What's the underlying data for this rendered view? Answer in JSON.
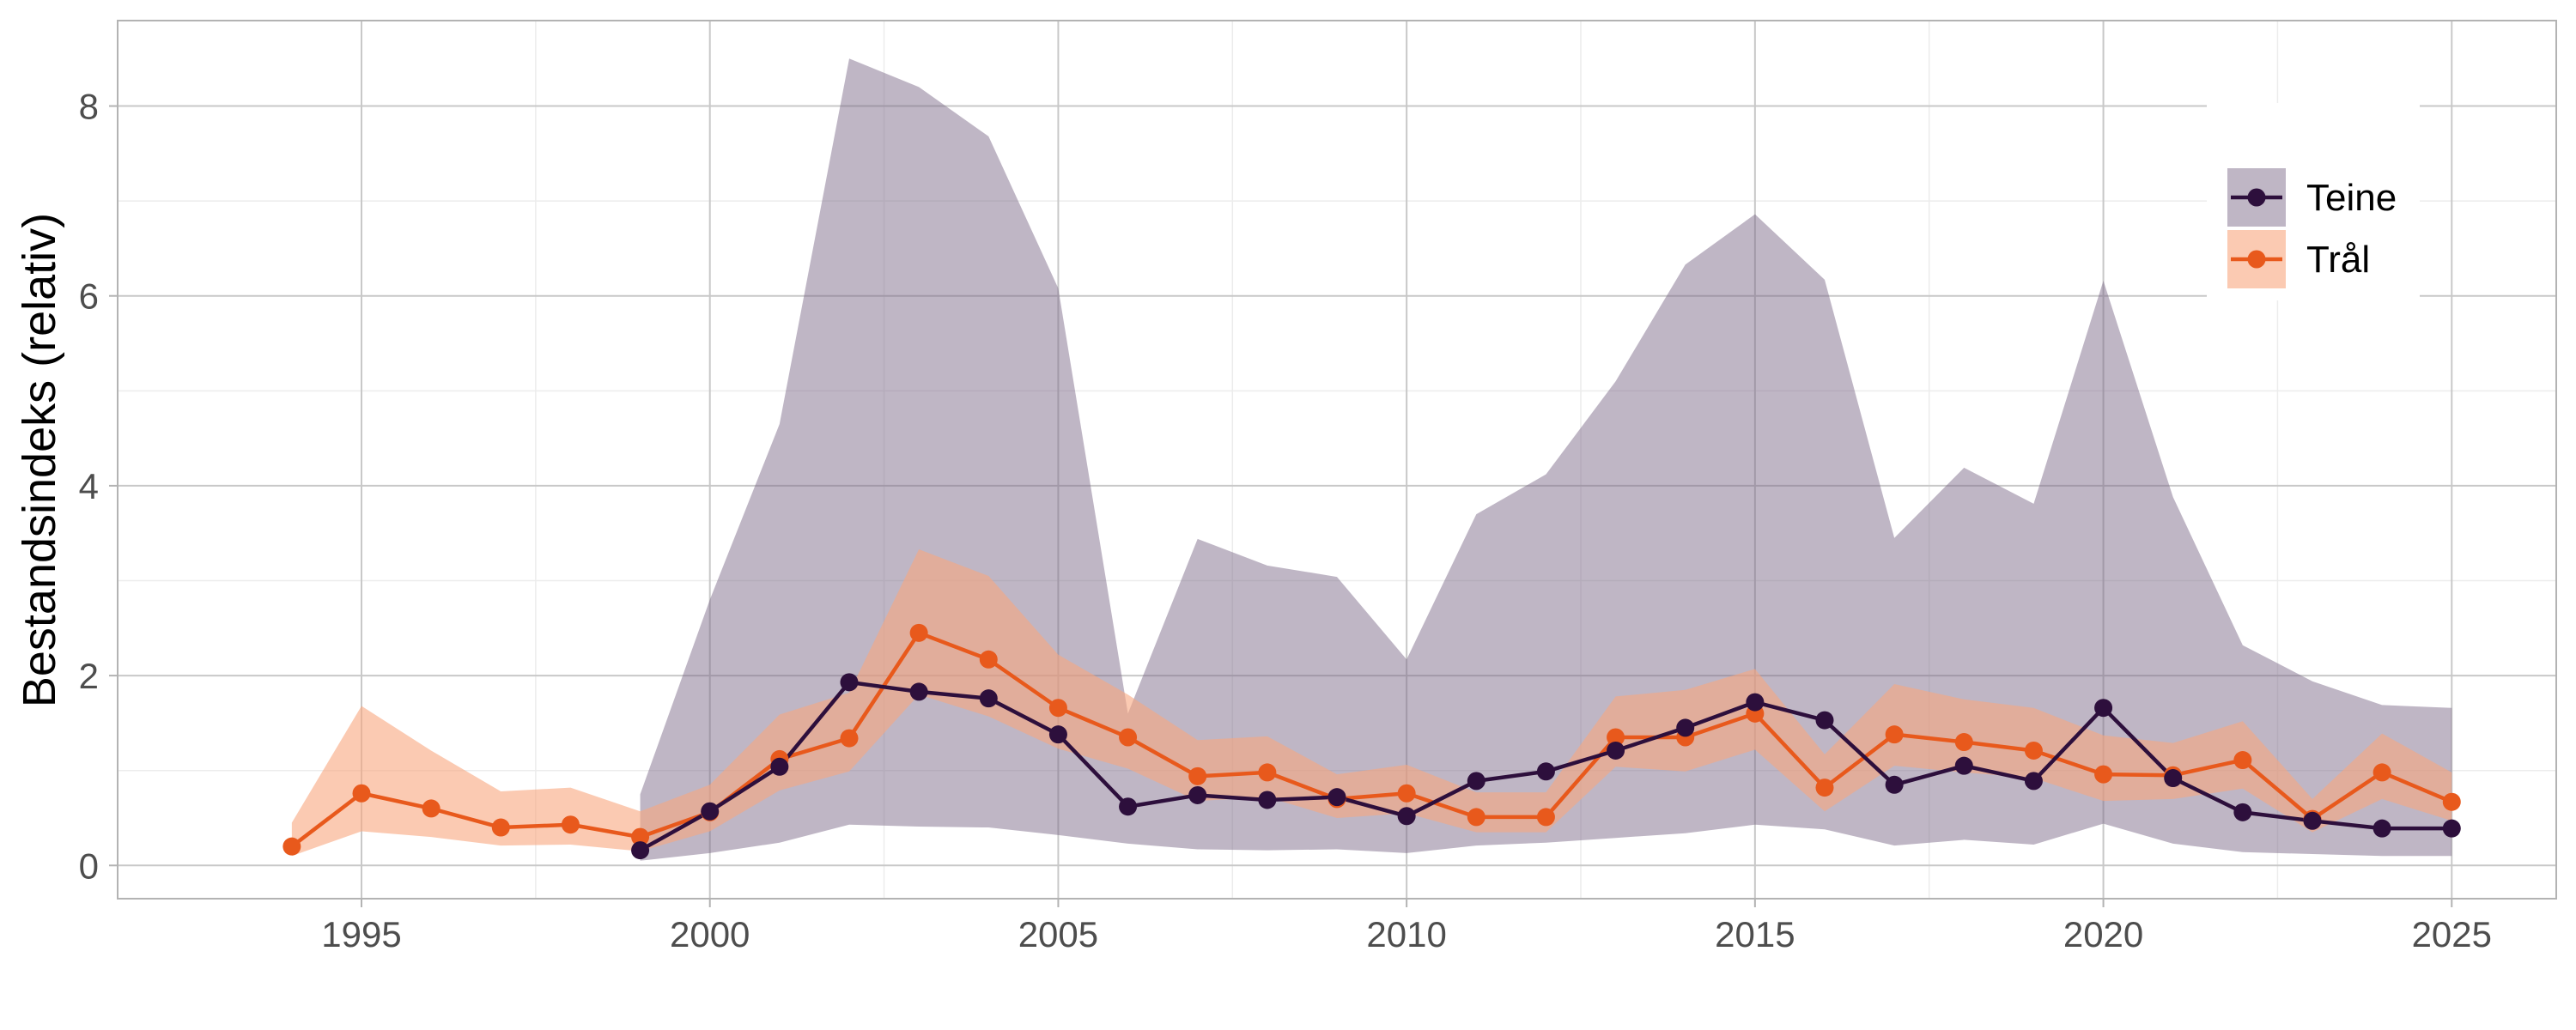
{
  "chart_data": {
    "type": "line",
    "title": "",
    "xlabel": "",
    "ylabel": "Bestandsindeks (relativ)",
    "xlim": [
      1991.5,
      2026.5
    ],
    "ylim": [
      -0.35,
      8.9
    ],
    "xticks": [
      1995,
      2000,
      2005,
      2010,
      2015,
      2020,
      2025
    ],
    "yticks": [
      0,
      2,
      4,
      6,
      8
    ],
    "grid": true,
    "legend_position": "top-right",
    "series": [
      {
        "name": "Teine",
        "color": "#2d0f3c",
        "ribbon_color": "#7a6785",
        "ribbon_opacity": 0.48,
        "x": [
          1999,
          2000,
          2001,
          2002,
          2003,
          2004,
          2005,
          2006,
          2007,
          2008,
          2009,
          2010,
          2011,
          2012,
          2013,
          2014,
          2015,
          2016,
          2017,
          2018,
          2019,
          2020,
          2021,
          2022,
          2023,
          2024,
          2025
        ],
        "y": [
          0.16,
          0.57,
          1.04,
          1.93,
          1.83,
          1.76,
          1.38,
          0.62,
          0.74,
          0.69,
          0.72,
          0.52,
          0.89,
          0.99,
          1.21,
          1.45,
          1.72,
          1.53,
          0.85,
          1.05,
          0.89,
          1.66,
          0.92,
          0.56,
          0.47,
          0.39,
          0.39
        ],
        "lower": [
          0.05,
          0.13,
          0.24,
          0.43,
          0.41,
          0.4,
          0.32,
          0.23,
          0.17,
          0.16,
          0.17,
          0.13,
          0.21,
          0.24,
          0.29,
          0.34,
          0.43,
          0.38,
          0.21,
          0.27,
          0.22,
          0.44,
          0.23,
          0.14,
          0.12,
          0.1,
          0.1
        ],
        "upper": [
          0.75,
          2.8,
          4.65,
          8.5,
          8.2,
          7.68,
          6.08,
          1.6,
          3.44,
          3.16,
          3.04,
          2.17,
          3.7,
          4.12,
          5.1,
          6.33,
          6.86,
          6.17,
          3.45,
          4.19,
          3.81,
          6.16,
          3.88,
          2.32,
          1.94,
          1.69,
          1.66
        ]
      },
      {
        "name": "Trål",
        "color": "#e8591c",
        "ribbon_color": "#f8a77f",
        "ribbon_opacity": 0.6,
        "x": [
          1994,
          1995,
          1996,
          1997,
          1998,
          1999,
          2000,
          2001,
          2002,
          2003,
          2004,
          2005,
          2006,
          2007,
          2008,
          2009,
          2010,
          2011,
          2012,
          2013,
          2014,
          2015,
          2016,
          2017,
          2018,
          2019,
          2020,
          2021,
          2022,
          2023,
          2024,
          2025
        ],
        "y": [
          0.2,
          0.76,
          0.6,
          0.4,
          0.43,
          0.3,
          0.56,
          1.12,
          1.34,
          2.45,
          2.17,
          1.66,
          1.35,
          0.94,
          0.98,
          0.7,
          0.76,
          0.51,
          0.51,
          1.35,
          1.35,
          1.6,
          0.82,
          1.38,
          1.3,
          1.21,
          0.96,
          0.95,
          1.11,
          0.49,
          0.98,
          0.67
        ],
        "lower": [
          0.1,
          0.36,
          0.3,
          0.21,
          0.22,
          0.15,
          0.36,
          0.79,
          0.99,
          1.8,
          1.57,
          1.23,
          1.02,
          0.68,
          0.72,
          0.5,
          0.55,
          0.35,
          0.35,
          1.04,
          0.99,
          1.22,
          0.57,
          1.05,
          0.98,
          0.92,
          0.68,
          0.7,
          0.81,
          0.35,
          0.7,
          0.47
        ],
        "upper": [
          0.45,
          1.68,
          1.21,
          0.78,
          0.82,
          0.57,
          0.85,
          1.59,
          1.82,
          3.33,
          3.05,
          2.22,
          1.8,
          1.32,
          1.36,
          0.96,
          1.06,
          0.77,
          0.77,
          1.78,
          1.85,
          2.07,
          1.17,
          1.91,
          1.75,
          1.66,
          1.37,
          1.29,
          1.52,
          0.7,
          1.39,
          0.98
        ]
      }
    ]
  }
}
